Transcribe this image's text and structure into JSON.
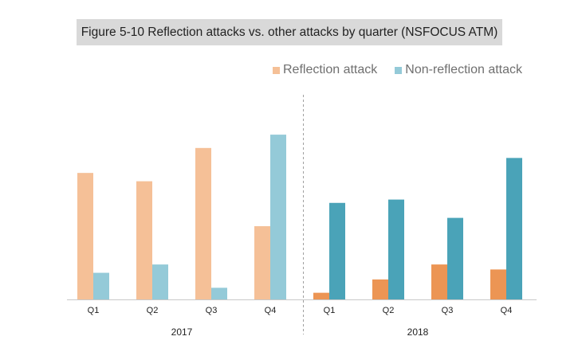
{
  "caption": "Figure 5-10 Reflection attacks vs. other attacks by quarter (NSFOCUS ATM)",
  "legend": [
    {
      "label": "Reflection attack",
      "color": "#f5c097"
    },
    {
      "label": "Non-reflection attack",
      "color": "#94cad8"
    }
  ],
  "chart_data": {
    "type": "bar",
    "title": "Figure 5-10 Reflection attacks vs. other attacks by quarter (NSFOCUS ATM)",
    "xlabel": "",
    "ylabel": "",
    "ylim": [
      0,
      100
    ],
    "grid": false,
    "legend_position": "top-right",
    "groups": [
      {
        "label": "2017",
        "categories": [
          "Q1",
          "Q2",
          "Q3",
          "Q4"
        ],
        "series": [
          {
            "name": "Reflection attack",
            "color": "#f5c097",
            "values": [
              76,
              71,
              91,
              44
            ]
          },
          {
            "name": "Non-reflection attack",
            "color": "#94cad8",
            "values": [
              16,
              21,
              7,
              99
            ]
          }
        ]
      },
      {
        "label": "2018",
        "categories": [
          "Q1",
          "Q2",
          "Q3",
          "Q4"
        ],
        "series": [
          {
            "name": "Reflection attack",
            "color": "#ec9554",
            "values": [
              4,
              12,
              21,
              18
            ]
          },
          {
            "name": "Non-reflection attack",
            "color": "#4aa3b8",
            "values": [
              58,
              60,
              49,
              85
            ]
          }
        ]
      }
    ]
  }
}
